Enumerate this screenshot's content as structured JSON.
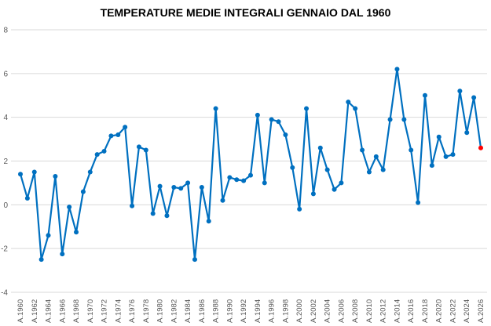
{
  "chart_data": {
    "type": "line",
    "title": "TEMPERATURE MEDIE INTEGRALI GENNAIO DAL 1960",
    "xlabel": "",
    "ylabel": "",
    "ylim": [
      -4,
      8
    ],
    "yticks": [
      -4,
      -2,
      0,
      2,
      4,
      6,
      8
    ],
    "grid": true,
    "legend": "none",
    "x": [
      1960,
      1961,
      1962,
      1963,
      1964,
      1965,
      1966,
      1967,
      1968,
      1969,
      1970,
      1971,
      1972,
      1973,
      1974,
      1975,
      1976,
      1977,
      1978,
      1979,
      1980,
      1981,
      1982,
      1983,
      1984,
      1985,
      1986,
      1987,
      1988,
      1989,
      1990,
      1991,
      1992,
      1993,
      1994,
      1995,
      1996,
      1997,
      1998,
      1999,
      2000,
      2001,
      2002,
      2003,
      2004,
      2005,
      2006,
      2007,
      2008,
      2009,
      2010,
      2011,
      2012,
      2013,
      2014,
      2015,
      2016,
      2017,
      2018,
      2019,
      2020,
      2021,
      2022,
      2023,
      2024,
      2025,
      2026
    ],
    "x_tick_labels": [
      "A.1960",
      "A.1962",
      "A.1964",
      "A.1966",
      "A.1968",
      "A.1970",
      "A.1972",
      "A.1974",
      "A.1976",
      "A.1978",
      "A.1980",
      "A.1982",
      "A.1984",
      "A.1986",
      "A.1988",
      "A.1990",
      "A.1992",
      "A.1994",
      "A.1996",
      "A.1998",
      "A.2000",
      "A.2002",
      "A.2004",
      "A.2006",
      "A.2008",
      "A.2010",
      "A.2012",
      "A.2014",
      "A.2016",
      "A.2018",
      "A.2020",
      "A.2022",
      "A.2024",
      "A.2026"
    ],
    "series": [
      {
        "name": "Gennaio",
        "color": "#0070C0",
        "highlight_color": "#FF0000",
        "highlight_last": true,
        "values": [
          1.4,
          0.3,
          1.5,
          -2.5,
          -1.4,
          1.3,
          -2.25,
          -0.1,
          -1.25,
          0.6,
          1.5,
          2.3,
          2.45,
          3.15,
          3.2,
          3.55,
          -0.05,
          2.65,
          2.5,
          -0.4,
          0.85,
          -0.5,
          0.8,
          0.75,
          1.0,
          -2.5,
          0.8,
          -0.75,
          4.4,
          0.2,
          1.25,
          1.15,
          1.1,
          1.35,
          4.1,
          1.0,
          3.9,
          3.8,
          3.2,
          1.7,
          -0.2,
          4.4,
          0.5,
          2.6,
          1.6,
          0.7,
          1.0,
          4.7,
          4.4,
          2.5,
          1.5,
          2.2,
          1.6,
          3.9,
          6.2,
          3.9,
          2.5,
          0.1,
          5.0,
          1.8,
          3.1,
          2.2,
          2.3,
          5.2,
          3.3,
          4.9,
          2.6
        ]
      }
    ]
  }
}
